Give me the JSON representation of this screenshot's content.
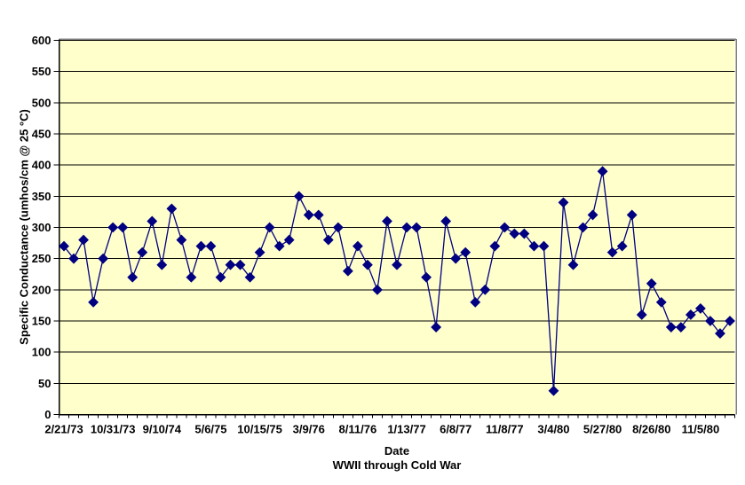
{
  "chart_data": {
    "type": "line",
    "title": "",
    "xlabel": "Date",
    "xlabel_subtitle": "WWII through Cold War",
    "ylabel": "Specific Conductance (umhos/cm @ 25 °C)",
    "ylim": [
      0,
      600
    ],
    "ytick_step": 50,
    "grid": "horizontal",
    "legend": "none",
    "marker": "diamond",
    "x_tick_labels": [
      "2/21/73",
      "10/31/73",
      "9/10/74",
      "5/6/75",
      "10/15/75",
      "3/9/76",
      "8/11/76",
      "1/13/77",
      "6/8/77",
      "11/8/77",
      "3/4/80",
      "5/27/80",
      "8/26/80",
      "11/5/80"
    ],
    "x_tick_label_every": 5,
    "values": [
      270,
      250,
      280,
      180,
      250,
      300,
      300,
      220,
      260,
      310,
      240,
      330,
      280,
      220,
      270,
      270,
      220,
      240,
      240,
      220,
      260,
      300,
      270,
      280,
      350,
      320,
      320,
      280,
      300,
      230,
      270,
      240,
      200,
      310,
      240,
      300,
      300,
      220,
      140,
      310,
      250,
      260,
      180,
      200,
      270,
      300,
      290,
      290,
      270,
      270,
      38,
      340,
      240,
      300,
      320,
      390,
      260,
      270,
      320,
      160,
      210,
      180,
      140,
      140,
      160,
      170,
      150,
      130,
      150
    ],
    "colors": {
      "plot_background": "#FFFFCC",
      "outer_background": "#FFFFFF",
      "gridline": "#000000",
      "series": "#000080",
      "axis": "#000000",
      "frame_border": "#808080",
      "text": "#000000"
    }
  }
}
